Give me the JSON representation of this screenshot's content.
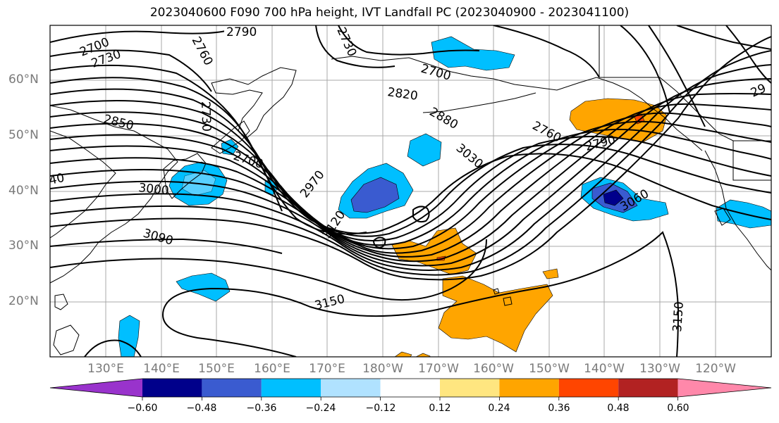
{
  "title": "2023040600 F090 700 hPa height, IVT Landfall PC (2023040900 - 2023041100)",
  "lat_labels": [
    "60°N",
    "50°N",
    "40°N",
    "30°N",
    "20°N"
  ],
  "lon_labels": [
    "130°E",
    "140°E",
    "150°E",
    "160°E",
    "170°E",
    "180°W",
    "170°W",
    "160°W",
    "150°W",
    "140°W",
    "130°W",
    "120°W"
  ],
  "contour_labels": [
    "2790",
    "2730",
    "2700",
    "2730",
    "2760",
    "2700",
    "2820",
    "2880",
    "2760",
    "2790",
    "29",
    "2850",
    "2730",
    "2700",
    "3030",
    "3060",
    "40",
    "3000",
    "2970",
    "3120",
    "3090",
    "3150",
    "3150"
  ],
  "colorbar": {
    "tick_labels": [
      "−0.60",
      "−0.48",
      "−0.36",
      "−0.24",
      "−0.12",
      "0.12",
      "0.24",
      "0.36",
      "0.48",
      "0.60"
    ],
    "colors": [
      "#9933cc",
      "#00008b",
      "#3a5bd0",
      "#00bfff",
      "#b0e2ff",
      "#ffffff",
      "#ffe680",
      "#ffa500",
      "#ff4500",
      "#b22222",
      "#ff88aa"
    ]
  }
}
